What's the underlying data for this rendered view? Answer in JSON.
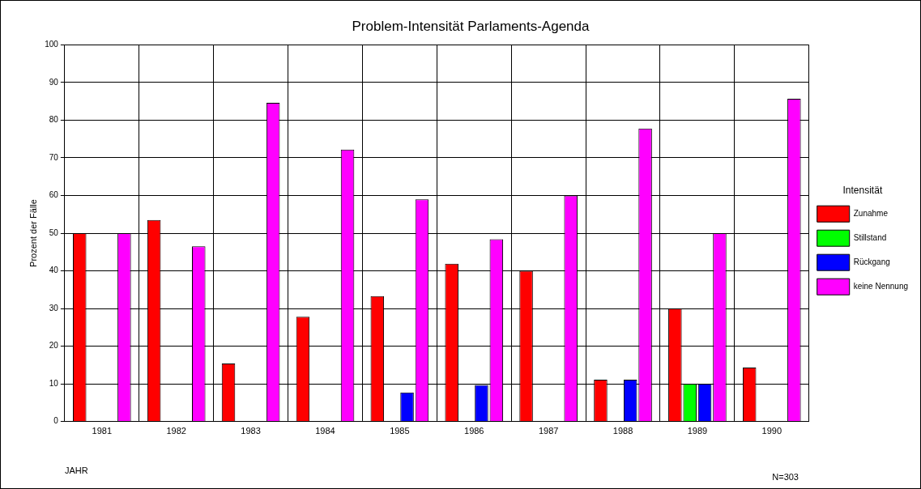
{
  "chart_data": {
    "type": "bar",
    "title": "Problem-Intensität Parlaments-Agenda",
    "xlabel": "JAHR",
    "ylabel": "Prozent der Fälle",
    "legend_title": "Intensität",
    "categories": [
      "1981",
      "1982",
      "1983",
      "1984",
      "1985",
      "1986",
      "1987",
      "1988",
      "1989",
      "1990"
    ],
    "series": [
      {
        "name": "Zunahme",
        "color": "#ff0000",
        "values": [
          50,
          53.5,
          15.4,
          27.8,
          33.3,
          41.9,
          40,
          11.1,
          30,
          14.3
        ]
      },
      {
        "name": "Stillstand",
        "color": "#00ff00",
        "values": [
          0,
          0,
          0,
          0,
          0,
          0,
          0,
          0,
          10,
          0
        ]
      },
      {
        "name": "Rückgang",
        "color": "#0000ff",
        "values": [
          0,
          0,
          0,
          0,
          7.7,
          9.7,
          0,
          11.1,
          10,
          0
        ]
      },
      {
        "name": "keine Nennung",
        "color": "#ff00ff",
        "values": [
          50,
          46.5,
          84.6,
          72.2,
          59,
          48.4,
          60,
          77.8,
          50,
          85.7
        ]
      }
    ],
    "ylim": [
      0,
      100
    ],
    "yticks": [
      0,
      10,
      20,
      30,
      40,
      50,
      60,
      70,
      80,
      90,
      100
    ],
    "grid": true,
    "legend": "right",
    "annotations": [
      "N=303"
    ]
  }
}
